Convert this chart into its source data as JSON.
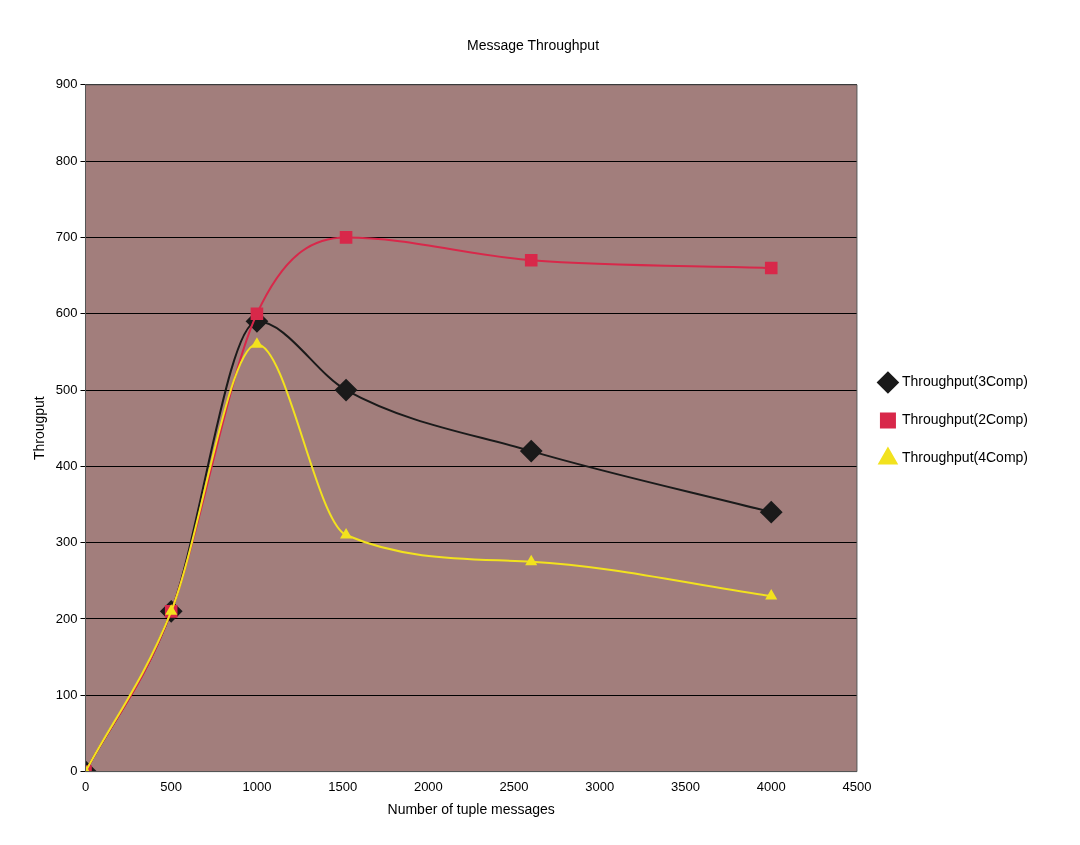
{
  "chart_data": {
    "type": "line",
    "title": "Message Throughput",
    "xlabel": "Number of tuple messages",
    "ylabel": "Througput",
    "x": [
      0,
      500,
      1000,
      1520,
      2600,
      4000
    ],
    "series": [
      {
        "name": "Throughput(3Comp)",
        "color": "#1a1a1a",
        "marker": "diamond",
        "values": [
          0,
          210,
          590,
          500,
          420,
          340
        ]
      },
      {
        "name": "Throughput(2Comp)",
        "color": "#d8284a",
        "marker": "square",
        "values": [
          0,
          210,
          600,
          700,
          670,
          660
        ]
      },
      {
        "name": "Throughput(4Comp)",
        "color": "#f2e21e",
        "marker": "triangle",
        "values": [
          0,
          210,
          560,
          310,
          275,
          230
        ]
      }
    ],
    "xlim": [
      0,
      4500
    ],
    "xticks": [
      0,
      500,
      1000,
      1500,
      2000,
      2500,
      3000,
      3500,
      4000,
      4500
    ],
    "ylim": [
      0,
      900
    ],
    "yticks": [
      0,
      100,
      200,
      300,
      400,
      500,
      600,
      700,
      800,
      900
    ],
    "grid": "y",
    "legend": "right",
    "line_style": "solid"
  }
}
